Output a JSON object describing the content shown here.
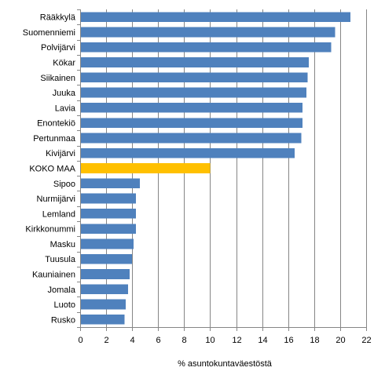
{
  "chart_data": {
    "type": "bar",
    "orientation": "horizontal",
    "categories": [
      "Rääkkylä",
      "Suomenniemi",
      "Polvijärvi",
      "Kökar",
      "Siikainen",
      "Juuka",
      "Lavia",
      "Enontekiö",
      "Pertunmaa",
      "Kivijärvi",
      "KOKO MAA",
      "Sipoo",
      "Nurmijärvi",
      "Lemland",
      "Kirkkonummi",
      "Masku",
      "Tuusula",
      "Kauniainen",
      "Jomala",
      "Luoto",
      "Rusko"
    ],
    "values": [
      20.8,
      19.6,
      19.3,
      17.6,
      17.5,
      17.4,
      17.1,
      17.1,
      17.0,
      16.5,
      10.0,
      4.6,
      4.3,
      4.3,
      4.3,
      4.1,
      4.0,
      3.8,
      3.7,
      3.5,
      3.4
    ],
    "highlight_category": "KOKO MAA",
    "xlabel": "% asuntokuntaväestöstä",
    "ylabel": "",
    "xlim": [
      0,
      22
    ],
    "xticks": [
      0,
      2,
      4,
      6,
      8,
      10,
      12,
      14,
      16,
      18,
      20,
      22
    ],
    "grid": "vertical",
    "legend": "none",
    "colors": {
      "bar": "#4f81bd",
      "highlight": "#ffc000",
      "grid": "#868686"
    }
  }
}
